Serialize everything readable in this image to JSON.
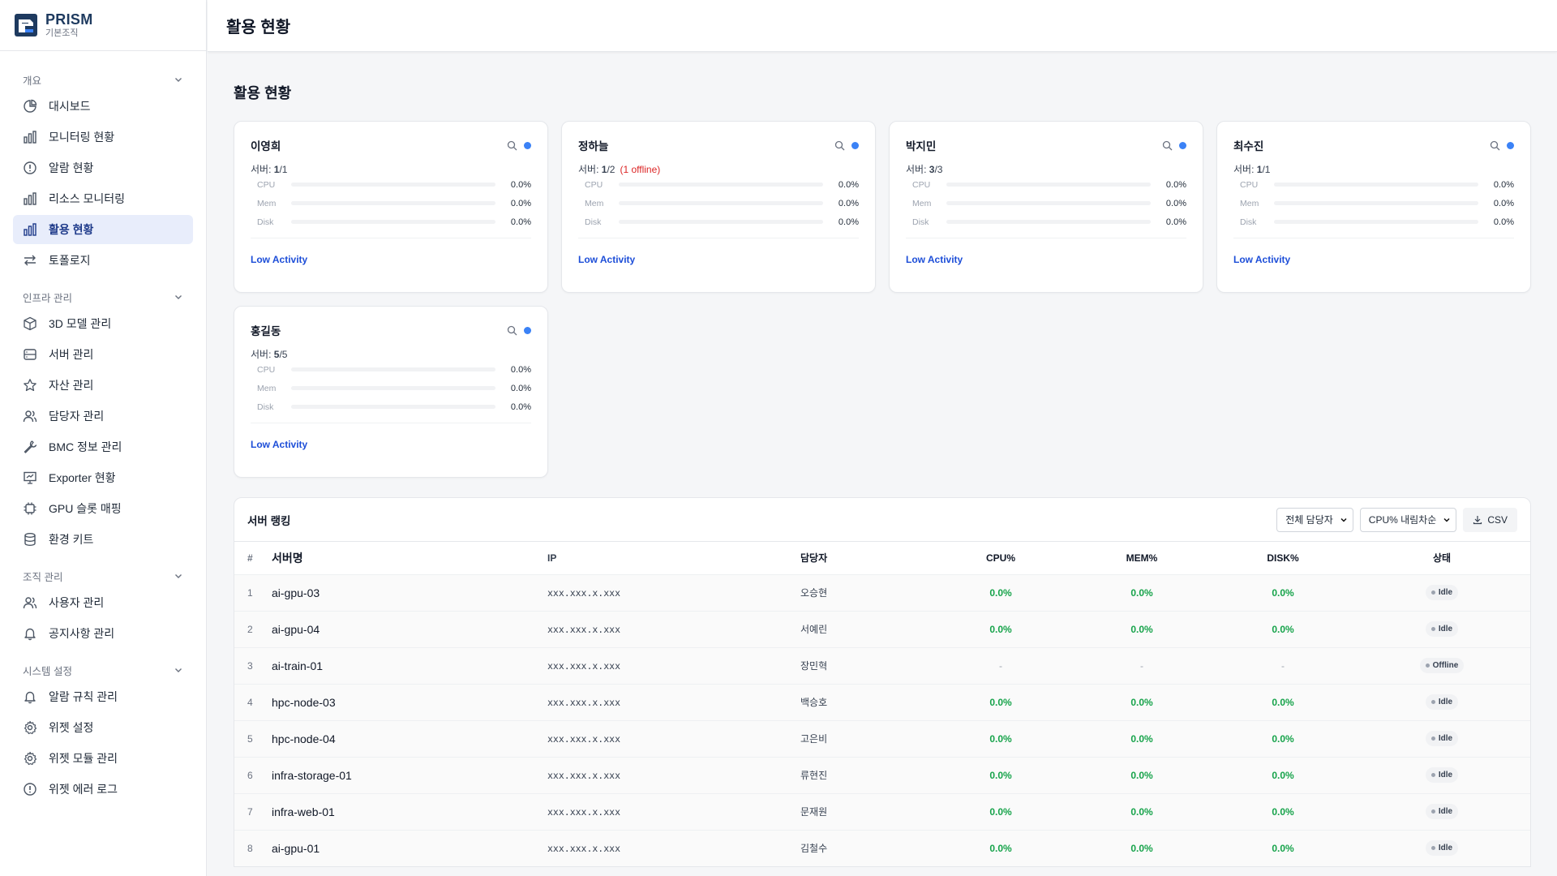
{
  "brand": {
    "name": "PRISM",
    "subtitle": "기본조직"
  },
  "header": {
    "title": "활용 현황"
  },
  "sidebar": {
    "sections": [
      {
        "label": "개요",
        "items": [
          {
            "label": "대시보드",
            "icon": "pie-chart-icon"
          },
          {
            "label": "모니터링 현황",
            "icon": "bar-chart-icon"
          },
          {
            "label": "알람 현황",
            "icon": "alert-circle-icon"
          },
          {
            "label": "리소스 모니터링",
            "icon": "bar-chart-icon"
          },
          {
            "label": "활용 현황",
            "icon": "bar-chart-icon",
            "active": true
          },
          {
            "label": "토폴로지",
            "icon": "arrows-exchange-icon"
          }
        ]
      },
      {
        "label": "인프라 관리",
        "items": [
          {
            "label": "3D 모델 관리",
            "icon": "cube-icon"
          },
          {
            "label": "서버 관리",
            "icon": "server-icon"
          },
          {
            "label": "자산 관리",
            "icon": "star-icon"
          },
          {
            "label": "담당자 관리",
            "icon": "users-icon"
          },
          {
            "label": "BMC 정보 관리",
            "icon": "wrench-icon"
          },
          {
            "label": "Exporter 현황",
            "icon": "presentation-icon"
          },
          {
            "label": "GPU 슬롯 매핑",
            "icon": "chip-icon"
          },
          {
            "label": "환경 키트",
            "icon": "database-icon"
          }
        ]
      },
      {
        "label": "조직 관리",
        "items": [
          {
            "label": "사용자 관리",
            "icon": "users-icon"
          },
          {
            "label": "공지사항 관리",
            "icon": "bell-icon"
          }
        ]
      },
      {
        "label": "시스템 설정",
        "items": [
          {
            "label": "알람 규칙 관리",
            "icon": "bell-icon"
          },
          {
            "label": "위젯 설정",
            "icon": "gear-icon"
          },
          {
            "label": "위젯 모듈 관리",
            "icon": "gear-icon"
          },
          {
            "label": "위젯 에러 로그",
            "icon": "alert-circle-icon"
          }
        ]
      }
    ]
  },
  "main": {
    "title": "활용 현황",
    "server_prefix": "서버: ",
    "metric_labels": [
      "CPU",
      "Mem",
      "Disk"
    ],
    "cards": [
      {
        "name": "이영희",
        "servers_up": "1",
        "servers_total": "/1",
        "offline_note": "",
        "metrics": [
          "0.0%",
          "0.0%",
          "0.0%"
        ],
        "fill": [
          0,
          0,
          0
        ],
        "activity": "Low Activity",
        "status_color": "#3b82f6"
      },
      {
        "name": "정하늘",
        "servers_up": "1",
        "servers_total": "/2",
        "offline_note": "(1 offline)",
        "metrics": [
          "0.0%",
          "0.0%",
          "0.0%"
        ],
        "fill": [
          0,
          0,
          0
        ],
        "activity": "Low Activity",
        "status_color": "#3b82f6"
      },
      {
        "name": "박지민",
        "servers_up": "3",
        "servers_total": "/3",
        "offline_note": "",
        "metrics": [
          "0.0%",
          "0.0%",
          "0.0%"
        ],
        "fill": [
          0,
          0,
          0
        ],
        "activity": "Low Activity",
        "status_color": "#3b82f6"
      },
      {
        "name": "최수진",
        "servers_up": "1",
        "servers_total": "/1",
        "offline_note": "",
        "metrics": [
          "0.0%",
          "0.0%",
          "0.0%"
        ],
        "fill": [
          0,
          0,
          0
        ],
        "activity": "Low Activity",
        "status_color": "#3b82f6"
      },
      {
        "name": "홍길동",
        "servers_up": "5",
        "servers_total": "/5",
        "offline_note": "",
        "metrics": [
          "0.0%",
          "0.0%",
          "0.0%"
        ],
        "fill": [
          0,
          0,
          0
        ],
        "activity": "Low Activity",
        "status_color": "#3b82f6"
      }
    ],
    "ranking": {
      "title": "서버 랭킹",
      "owner_filter": "전체 담당자",
      "sort": "CPU% 내림차순",
      "csv_label": "CSV",
      "columns": [
        "#",
        "서버명",
        "IP",
        "담당자",
        "CPU%",
        "MEM%",
        "DISK%",
        "상태"
      ],
      "rows": [
        {
          "rank": "1",
          "name": "ai-gpu-03",
          "ip": "xxx.xxx.x.xxx",
          "owner": "오승현",
          "cpu": "0.0%",
          "mem": "0.0%",
          "disk": "0.0%",
          "status": "Idle"
        },
        {
          "rank": "2",
          "name": "ai-gpu-04",
          "ip": "xxx.xxx.x.xxx",
          "owner": "서예린",
          "cpu": "0.0%",
          "mem": "0.0%",
          "disk": "0.0%",
          "status": "Idle"
        },
        {
          "rank": "3",
          "name": "ai-train-01",
          "ip": "xxx.xxx.x.xxx",
          "owner": "장민혁",
          "cpu": "-",
          "mem": "-",
          "disk": "-",
          "status": "Offline"
        },
        {
          "rank": "4",
          "name": "hpc-node-03",
          "ip": "xxx.xxx.x.xxx",
          "owner": "백승호",
          "cpu": "0.0%",
          "mem": "0.0%",
          "disk": "0.0%",
          "status": "Idle"
        },
        {
          "rank": "5",
          "name": "hpc-node-04",
          "ip": "xxx.xxx.x.xxx",
          "owner": "고은비",
          "cpu": "0.0%",
          "mem": "0.0%",
          "disk": "0.0%",
          "status": "Idle"
        },
        {
          "rank": "6",
          "name": "infra-storage-01",
          "ip": "xxx.xxx.x.xxx",
          "owner": "류현진",
          "cpu": "0.0%",
          "mem": "0.0%",
          "disk": "0.0%",
          "status": "Idle"
        },
        {
          "rank": "7",
          "name": "infra-web-01",
          "ip": "xxx.xxx.x.xxx",
          "owner": "문재원",
          "cpu": "0.0%",
          "mem": "0.0%",
          "disk": "0.0%",
          "status": "Idle"
        },
        {
          "rank": "8",
          "name": "ai-gpu-01",
          "ip": "xxx.xxx.x.xxx",
          "owner": "김철수",
          "cpu": "0.0%",
          "mem": "0.0%",
          "disk": "0.0%",
          "status": "Idle"
        }
      ]
    }
  }
}
